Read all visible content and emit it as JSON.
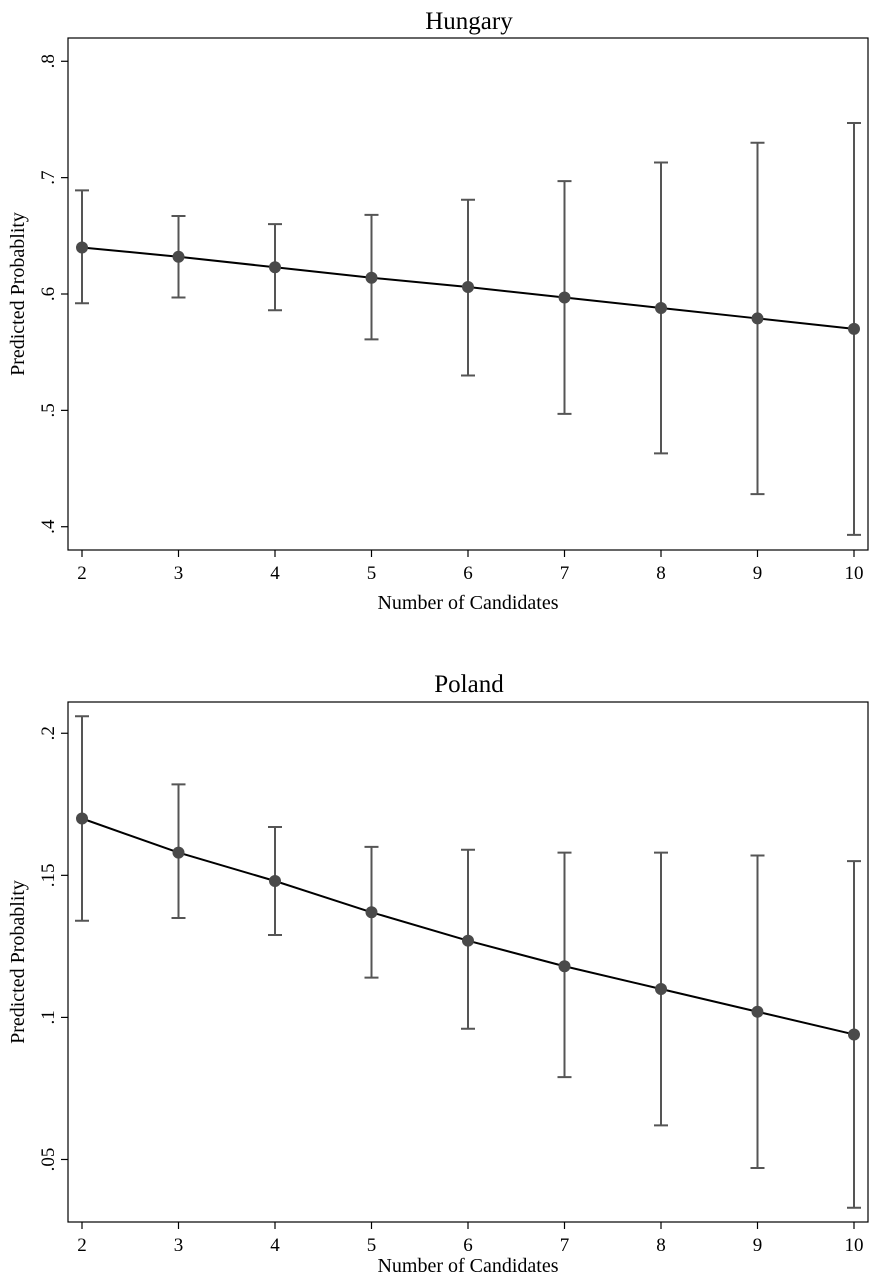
{
  "chart_data": [
    {
      "type": "line",
      "title": "Hungary",
      "xlabel": "Number of Candidates",
      "ylabel": "Predicted Probablity",
      "x": [
        2,
        3,
        4,
        5,
        6,
        7,
        8,
        9,
        10
      ],
      "xticks": [
        2,
        3,
        4,
        5,
        6,
        7,
        8,
        9,
        10
      ],
      "xtick_labels": [
        "2",
        "3",
        "4",
        "5",
        "6",
        "7",
        "8",
        "9",
        "10"
      ],
      "yticks": [
        0.4,
        0.5,
        0.6,
        0.7,
        0.8
      ],
      "ytick_labels": [
        ".4",
        ".5",
        ".6",
        ".7",
        ".8"
      ],
      "xlim": [
        2,
        10
      ],
      "ylim": [
        0.38,
        0.82
      ],
      "series": [
        {
          "values": [
            0.64,
            0.632,
            0.623,
            0.614,
            0.606,
            0.597,
            0.588,
            0.579,
            0.57
          ],
          "lower": [
            0.592,
            0.597,
            0.586,
            0.561,
            0.53,
            0.497,
            0.463,
            0.428,
            0.393
          ],
          "upper": [
            0.689,
            0.667,
            0.66,
            0.668,
            0.681,
            0.697,
            0.713,
            0.73,
            0.747
          ]
        }
      ],
      "grid": false,
      "colors": {
        "line": "#000000",
        "marker": "#4a4a4a",
        "errorbar": "#555555"
      }
    },
    {
      "type": "line",
      "title": "Poland",
      "xlabel": "Number of Candidates",
      "ylabel": "Predicted Probablity",
      "x": [
        2,
        3,
        4,
        5,
        6,
        7,
        8,
        9,
        10
      ],
      "xticks": [
        2,
        3,
        4,
        5,
        6,
        7,
        8,
        9,
        10
      ],
      "xtick_labels": [
        "2",
        "3",
        "4",
        "5",
        "6",
        "7",
        "8",
        "9",
        "10"
      ],
      "yticks": [
        0.05,
        0.1,
        0.15,
        0.2
      ],
      "ytick_labels": [
        ".05",
        ".1",
        ".15",
        ".2"
      ],
      "xlim": [
        2,
        10
      ],
      "ylim": [
        0.028,
        0.211
      ],
      "series": [
        {
          "values": [
            0.17,
            0.158,
            0.148,
            0.137,
            0.127,
            0.118,
            0.11,
            0.102,
            0.094
          ],
          "lower": [
            0.134,
            0.135,
            0.129,
            0.114,
            0.096,
            0.079,
            0.062,
            0.047,
            0.033
          ],
          "upper": [
            0.206,
            0.182,
            0.167,
            0.16,
            0.159,
            0.158,
            0.158,
            0.157,
            0.155
          ]
        }
      ],
      "grid": false,
      "colors": {
        "line": "#000000",
        "marker": "#4a4a4a",
        "errorbar": "#555555"
      }
    }
  ]
}
